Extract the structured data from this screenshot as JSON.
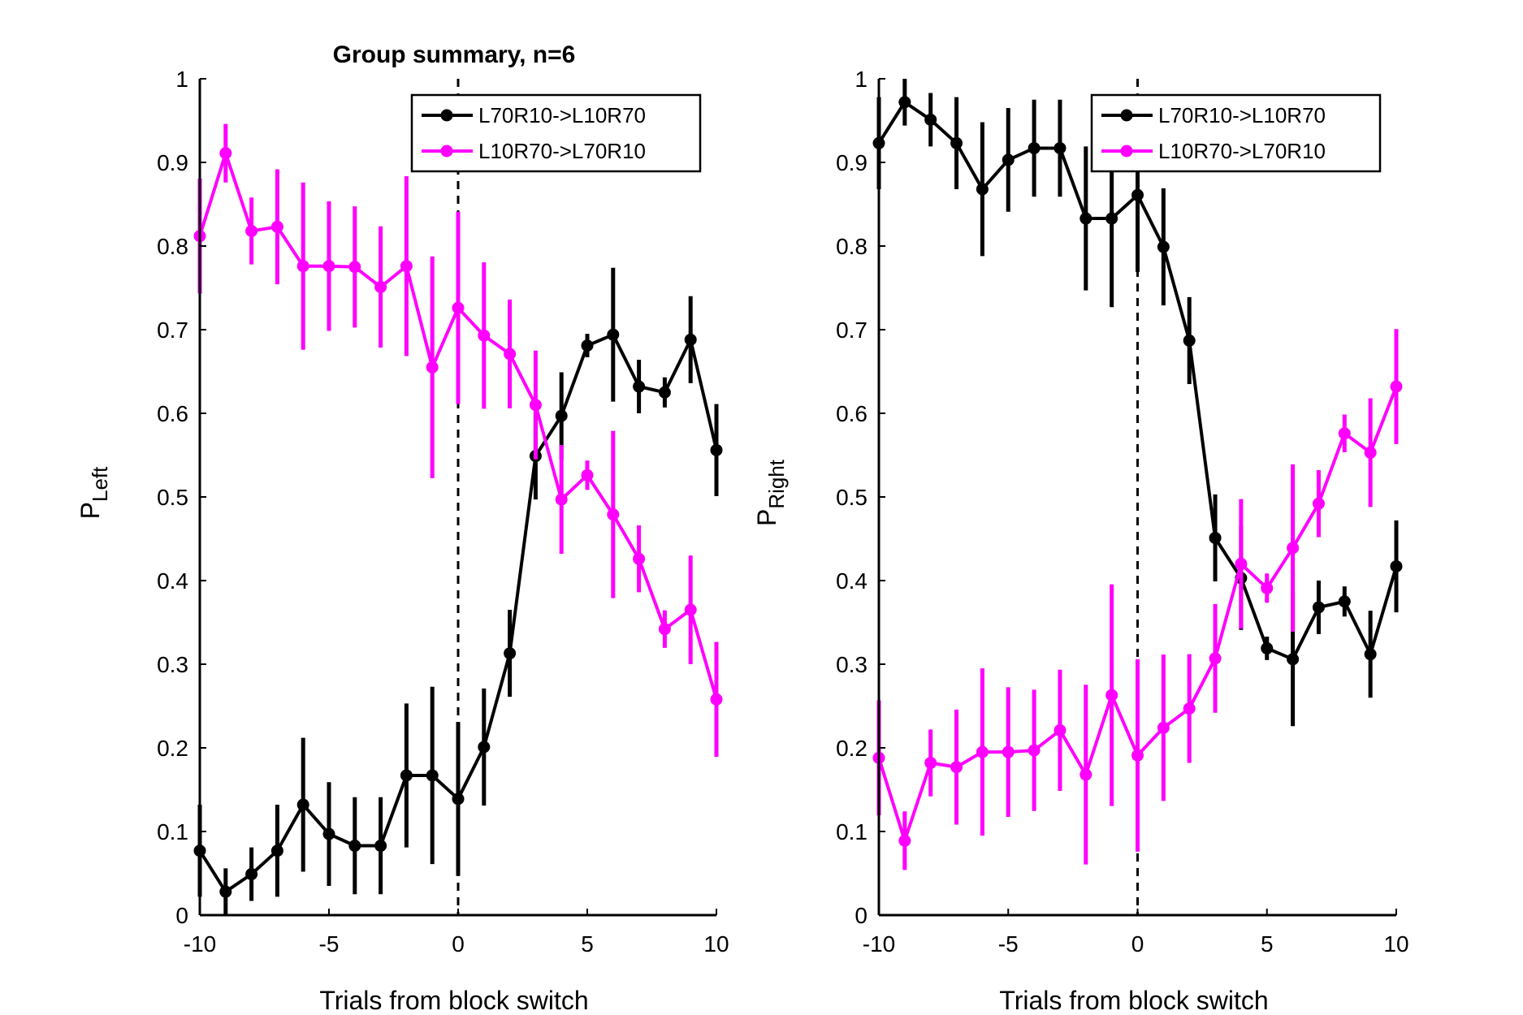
{
  "chart_data": [
    {
      "type": "line",
      "title": "Group summary, n=6",
      "xlabel": "Trials from block switch",
      "ylabel": "P",
      "ylabel_sub": "Left",
      "xlim": [
        -10,
        10
      ],
      "ylim": [
        0,
        1
      ],
      "xticks": [
        "-10",
        "-5",
        "0",
        "5",
        "10"
      ],
      "yticks": [
        "0",
        "0.1",
        "0.2",
        "0.3",
        "0.4",
        "0.5",
        "0.6",
        "0.7",
        "0.8",
        "0.9",
        "1"
      ],
      "grid": false,
      "legend_position": "top-right",
      "switch_marker_x": 0,
      "x": [
        -10,
        -9,
        -8,
        -7,
        -6,
        -5,
        -4,
        -3,
        -2,
        -1,
        0,
        1,
        2,
        3,
        4,
        5,
        6,
        7,
        8,
        9,
        10
      ],
      "series": [
        {
          "name": "L70R10->L10R70",
          "color": "#000000",
          "values": [
            0.077,
            0.028,
            0.049,
            0.077,
            0.132,
            0.097,
            0.083,
            0.083,
            0.167,
            0.167,
            0.139,
            0.201,
            0.313,
            0.549,
            0.597,
            0.681,
            0.694,
            0.632,
            0.625,
            0.688,
            0.556
          ],
          "errors": [
            0.055,
            0.028,
            0.032,
            0.055,
            0.08,
            0.062,
            0.058,
            0.058,
            0.086,
            0.106,
            0.092,
            0.07,
            0.052,
            0.052,
            0.052,
            0.014,
            0.08,
            0.032,
            0.018,
            0.052,
            0.055
          ]
        },
        {
          "name": "L10R70->L70R10",
          "color": "#ff00ff",
          "values": [
            0.812,
            0.911,
            0.818,
            0.823,
            0.776,
            0.776,
            0.775,
            0.751,
            0.776,
            0.655,
            0.726,
            0.693,
            0.671,
            0.61,
            0.497,
            0.526,
            0.479,
            0.426,
            0.342,
            0.365,
            0.258
          ]
        }
      ]
    },
    {
      "type": "line",
      "title": "",
      "xlabel": "Trials from block switch",
      "ylabel": "P",
      "ylabel_sub": "Right",
      "xlim": [
        -10,
        10
      ],
      "ylim": [
        0,
        1
      ],
      "xticks": [
        "-10",
        "-5",
        "0",
        "5",
        "10"
      ],
      "yticks": [
        "0",
        "0.1",
        "0.2",
        "0.3",
        "0.4",
        "0.5",
        "0.6",
        "0.7",
        "0.8",
        "0.9",
        "1"
      ],
      "grid": false,
      "legend_position": "top-right",
      "switch_marker_x": 0,
      "x": [
        -10,
        -9,
        -8,
        -7,
        -6,
        -5,
        -4,
        -3,
        -2,
        -1,
        0,
        1,
        2,
        3,
        4,
        5,
        6,
        7,
        8,
        9,
        10
      ],
      "series": [
        {
          "name": "L70R10->L10R70",
          "color": "#000000",
          "values": [
            0.923,
            0.972,
            0.951,
            0.923,
            0.868,
            0.903,
            0.917,
            0.917,
            0.833,
            0.833,
            0.861,
            0.799,
            0.687,
            0.451,
            0.403,
            0.319,
            0.306,
            0.368,
            0.375,
            0.312,
            0.417
          ],
          "errors": [
            0.055,
            0.028,
            0.032,
            0.055,
            0.08,
            0.062,
            0.058,
            0.058,
            0.086,
            0.106,
            0.092,
            0.07,
            0.052,
            0.052,
            0.062,
            0.014,
            0.08,
            0.032,
            0.018,
            0.052,
            0.055
          ]
        },
        {
          "name": "L10R70->L70R10",
          "color": "#ff00ff",
          "values": [
            0.188,
            0.089,
            0.182,
            0.177,
            0.195,
            0.195,
            0.197,
            0.221,
            0.168,
            0.263,
            0.191,
            0.224,
            0.247,
            0.307,
            0.42,
            0.391,
            0.439,
            0.492,
            0.576,
            0.553,
            0.632
          ]
        }
      ]
    }
  ]
}
